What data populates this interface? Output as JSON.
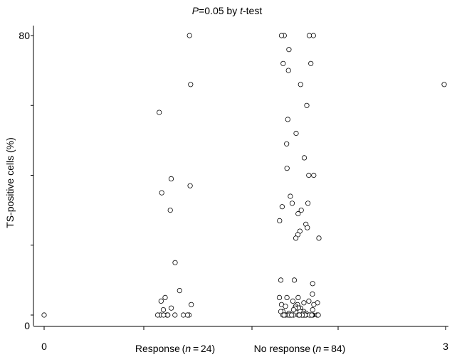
{
  "chart_data": {
    "type": "scatter",
    "title_prefix": "P",
    "title_middle": "=0.05 by ",
    "title_italic": "t",
    "title_suffix": "-test",
    "ylabel": "TS-positive cells (%)",
    "ylim": [
      0,
      80
    ],
    "y_ticks": [
      0,
      20,
      40,
      60,
      80
    ],
    "y_tick_labels": [
      "0",
      "",
      "",
      "",
      "80"
    ],
    "x_tick_labels": [
      "0",
      "3"
    ],
    "grid": false,
    "categories": [
      {
        "label_prefix": "Response (",
        "label_n": "n",
        "label_suffix": " = 24)"
      },
      {
        "label_prefix": "No response (",
        "label_n": "n",
        "label_suffix": " = 84)"
      }
    ],
    "series": [
      {
        "values": [
          80,
          66,
          58,
          39,
          37,
          35,
          30,
          15,
          7,
          5,
          4,
          3,
          2,
          1.5,
          0,
          0,
          0,
          0,
          0,
          0,
          0,
          0,
          0,
          0
        ]
      },
      {
        "values": [
          80,
          80,
          80,
          80,
          76,
          72,
          72,
          70,
          66,
          60,
          56,
          52,
          49,
          45,
          42,
          40,
          40,
          34,
          32,
          32,
          31,
          30,
          29,
          27,
          26,
          25,
          24,
          23,
          22,
          22,
          10,
          10,
          9,
          6,
          5,
          5,
          5,
          4,
          4,
          3.5,
          3.5,
          3,
          3,
          3,
          2.5,
          2.5,
          2,
          2,
          2,
          2,
          1.5,
          1.5,
          1,
          1,
          1,
          1,
          1,
          0.5,
          0.5,
          0.5,
          0,
          0,
          0,
          0,
          0,
          0,
          0,
          0,
          0,
          0,
          0,
          0,
          0,
          0,
          0,
          0,
          0,
          0,
          0,
          0,
          0,
          0,
          0,
          0
        ]
      }
    ],
    "extra_points": [
      {
        "x_label": "0",
        "y": 0
      },
      {
        "x_label": "3",
        "y": 66
      }
    ]
  }
}
